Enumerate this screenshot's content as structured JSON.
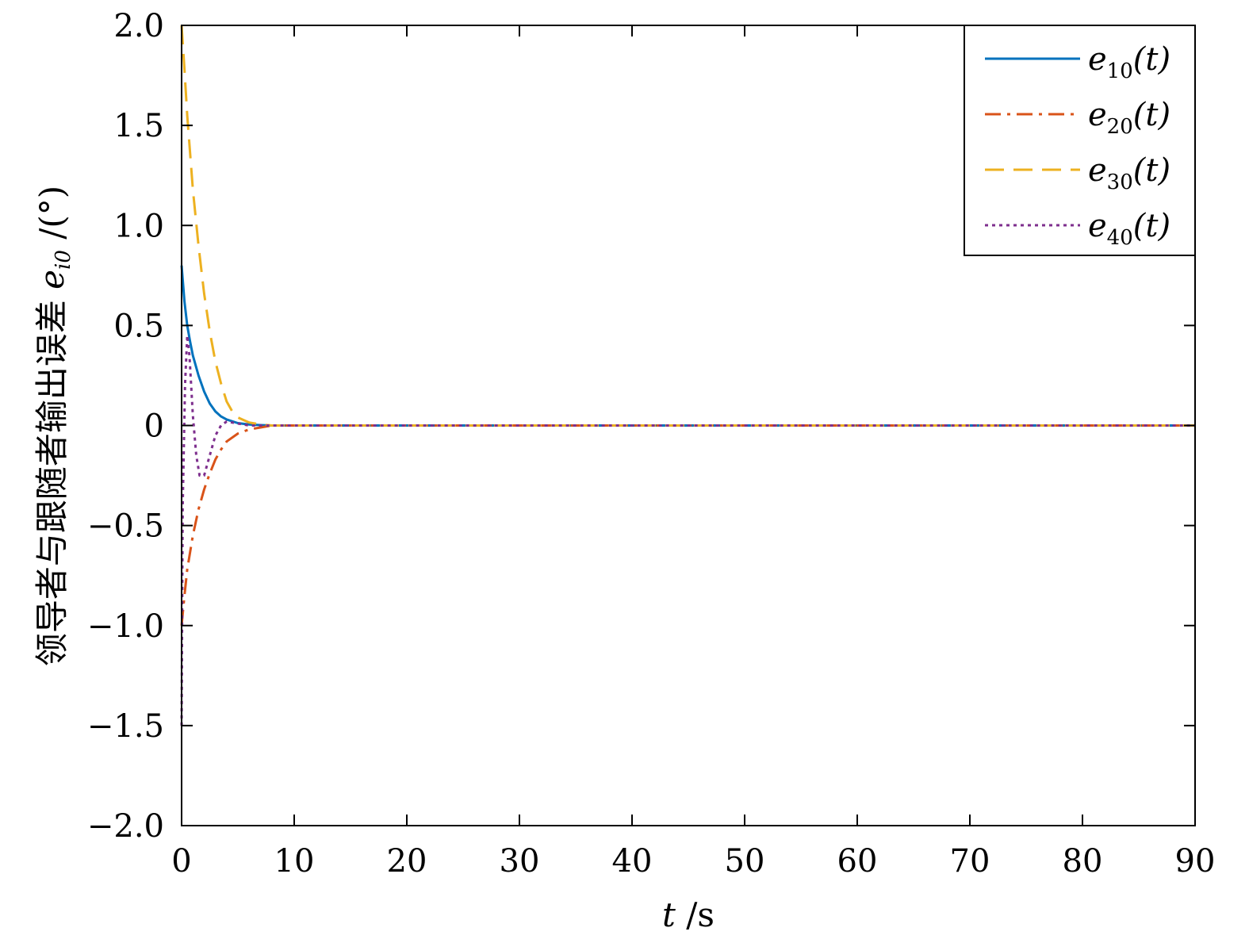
{
  "chart_data": {
    "type": "line",
    "xlabel": "t /s",
    "xlabel_var": "t",
    "xlabel_unit": " /s",
    "ylabel": "领导者与跟随者输出误差 e_i0 /(°)",
    "ylabel_text": "领导者与跟随者输出误差 ",
    "ylabel_var": "e",
    "ylabel_sub": "i0",
    "ylabel_unit": " /(°)",
    "xlim": [
      0,
      90
    ],
    "ylim": [
      -2.0,
      2.0
    ],
    "x_ticks": [
      0,
      10,
      20,
      30,
      40,
      50,
      60,
      70,
      80,
      90
    ],
    "x_tick_labels": [
      "0",
      "10",
      "20",
      "30",
      "40",
      "50",
      "60",
      "70",
      "80",
      "90"
    ],
    "y_ticks": [
      -2.0,
      -1.5,
      -1.0,
      -0.5,
      0,
      0.5,
      1.0,
      1.5,
      2.0
    ],
    "y_tick_labels": [
      "−2.0",
      "−1.5",
      "−1.0",
      "−0.5",
      "0",
      "0.5",
      "1.0",
      "1.5",
      "2.0"
    ],
    "grid": false,
    "legend_position": "top-right",
    "series": [
      {
        "name": "e10(t)",
        "label_var": "e",
        "label_sub": "10",
        "label_arg": "(t)",
        "color": "#0072BD",
        "style": "solid",
        "x": [
          0,
          0.25,
          0.5,
          0.75,
          1,
          1.5,
          2,
          2.5,
          3,
          3.5,
          4,
          5,
          6,
          7,
          8,
          10,
          20,
          40,
          60,
          90
        ],
        "y": [
          0.8,
          0.62,
          0.5,
          0.42,
          0.35,
          0.25,
          0.17,
          0.11,
          0.07,
          0.045,
          0.03,
          0.012,
          0.005,
          0.002,
          0.0,
          0.0,
          0.0,
          0.0,
          0.0,
          0.0
        ]
      },
      {
        "name": "e20(t)",
        "label_var": "e",
        "label_sub": "20",
        "label_arg": "(t)",
        "color": "#D95319",
        "style": "dashdot",
        "x": [
          0,
          0.25,
          0.5,
          1,
          1.5,
          2,
          2.5,
          3,
          3.5,
          4,
          5,
          6,
          7,
          8,
          10,
          20,
          40,
          60,
          90
        ],
        "y": [
          -1.0,
          -0.85,
          -0.72,
          -0.55,
          -0.42,
          -0.32,
          -0.24,
          -0.17,
          -0.12,
          -0.08,
          -0.04,
          -0.02,
          -0.01,
          0.0,
          0.0,
          0.0,
          0.0,
          0.0,
          0.0
        ]
      },
      {
        "name": "e30(t)",
        "label_var": "e",
        "label_sub": "30",
        "label_arg": "(t)",
        "color": "#EDB120",
        "style": "dashed",
        "x": [
          0,
          0.25,
          0.5,
          1,
          1.5,
          2,
          2.5,
          3,
          3.5,
          4,
          4.5,
          5,
          6,
          7,
          8,
          10,
          20,
          40,
          60,
          90
        ],
        "y": [
          2.0,
          1.78,
          1.55,
          1.18,
          0.9,
          0.66,
          0.47,
          0.32,
          0.21,
          0.12,
          0.07,
          0.04,
          0.015,
          0.005,
          0.0,
          0.0,
          0.0,
          0.0,
          0.0,
          0.0
        ]
      },
      {
        "name": "e40(t)",
        "label_var": "e",
        "label_sub": "40",
        "label_arg": "(t)",
        "color": "#7E2F8E",
        "style": "dotted",
        "x": [
          0,
          0.1,
          0.3,
          0.5,
          0.7,
          1,
          1.3,
          1.6,
          2,
          2.5,
          3,
          3.5,
          4,
          5,
          6,
          8,
          10,
          20,
          40,
          60,
          90
        ],
        "y": [
          -1.5,
          -0.4,
          0.2,
          0.45,
          0.35,
          0.05,
          -0.15,
          -0.25,
          -0.25,
          -0.15,
          -0.05,
          0.0,
          0.02,
          0.01,
          0.0,
          0.0,
          0.0,
          0.0,
          0.0,
          0.0,
          0.0
        ]
      }
    ]
  }
}
